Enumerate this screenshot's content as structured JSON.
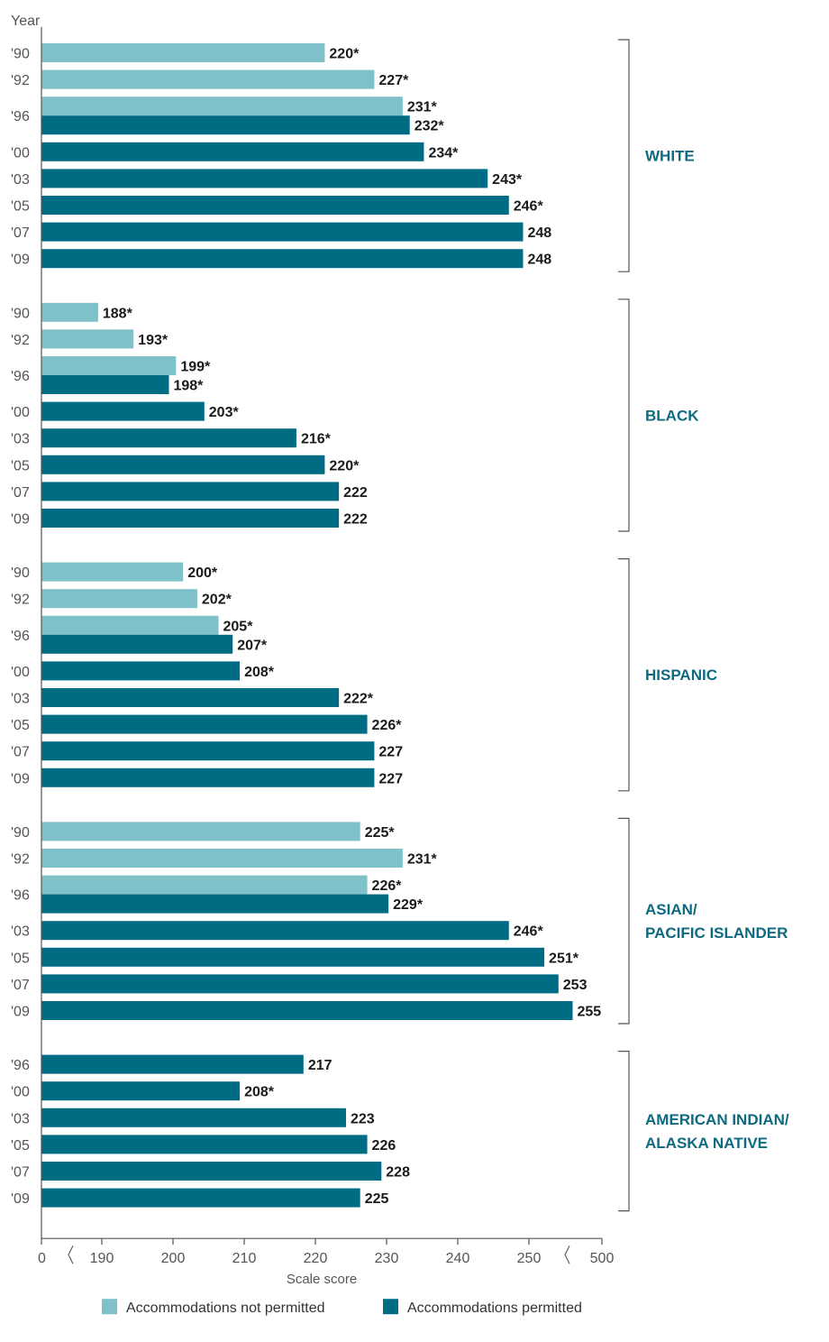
{
  "chart_data": {
    "type": "bar",
    "orientation": "horizontal",
    "y_axis_label": "Year",
    "x_axis_label": "Scale score",
    "x_ticks": [
      "0",
      "190",
      "200",
      "210",
      "220",
      "230",
      "240",
      "250",
      "500"
    ],
    "axis_breaks": true,
    "colors": {
      "not_permitted": "#7fc1c8",
      "permitted": "#006c84",
      "group_label": "#0e6a80"
    },
    "legend": {
      "placement": "bottom",
      "not_permitted": "Accommodations not permitted",
      "permitted": "Accommodations permitted"
    },
    "groups": [
      {
        "name_lines": [
          "WHITE"
        ],
        "rows": [
          {
            "year": "'90",
            "bars": [
              {
                "series": "not_permitted",
                "value": 220,
                "label": "220*"
              }
            ]
          },
          {
            "year": "'92",
            "bars": [
              {
                "series": "not_permitted",
                "value": 227,
                "label": "227*"
              }
            ]
          },
          {
            "year": "'96",
            "bars": [
              {
                "series": "not_permitted",
                "value": 231,
                "label": "231*"
              },
              {
                "series": "permitted",
                "value": 232,
                "label": "232*"
              }
            ]
          },
          {
            "year": "'00",
            "bars": [
              {
                "series": "permitted",
                "value": 234,
                "label": "234*"
              }
            ]
          },
          {
            "year": "'03",
            "bars": [
              {
                "series": "permitted",
                "value": 243,
                "label": "243*"
              }
            ]
          },
          {
            "year": "'05",
            "bars": [
              {
                "series": "permitted",
                "value": 246,
                "label": "246*"
              }
            ]
          },
          {
            "year": "'07",
            "bars": [
              {
                "series": "permitted",
                "value": 248,
                "label": "248"
              }
            ]
          },
          {
            "year": "'09",
            "bars": [
              {
                "series": "permitted",
                "value": 248,
                "label": "248"
              }
            ]
          }
        ]
      },
      {
        "name_lines": [
          "BLACK"
        ],
        "rows": [
          {
            "year": "'90",
            "bars": [
              {
                "series": "not_permitted",
                "value": 188,
                "label": "188*"
              }
            ]
          },
          {
            "year": "'92",
            "bars": [
              {
                "series": "not_permitted",
                "value": 193,
                "label": "193*"
              }
            ]
          },
          {
            "year": "'96",
            "bars": [
              {
                "series": "not_permitted",
                "value": 199,
                "label": "199*"
              },
              {
                "series": "permitted",
                "value": 198,
                "label": "198*"
              }
            ]
          },
          {
            "year": "'00",
            "bars": [
              {
                "series": "permitted",
                "value": 203,
                "label": "203*"
              }
            ]
          },
          {
            "year": "'03",
            "bars": [
              {
                "series": "permitted",
                "value": 216,
                "label": "216*"
              }
            ]
          },
          {
            "year": "'05",
            "bars": [
              {
                "series": "permitted",
                "value": 220,
                "label": "220*"
              }
            ]
          },
          {
            "year": "'07",
            "bars": [
              {
                "series": "permitted",
                "value": 222,
                "label": "222"
              }
            ]
          },
          {
            "year": "'09",
            "bars": [
              {
                "series": "permitted",
                "value": 222,
                "label": "222"
              }
            ]
          }
        ]
      },
      {
        "name_lines": [
          "HISPANIC"
        ],
        "rows": [
          {
            "year": "'90",
            "bars": [
              {
                "series": "not_permitted",
                "value": 200,
                "label": "200*"
              }
            ]
          },
          {
            "year": "'92",
            "bars": [
              {
                "series": "not_permitted",
                "value": 202,
                "label": "202*"
              }
            ]
          },
          {
            "year": "'96",
            "bars": [
              {
                "series": "not_permitted",
                "value": 205,
                "label": "205*"
              },
              {
                "series": "permitted",
                "value": 207,
                "label": "207*"
              }
            ]
          },
          {
            "year": "'00",
            "bars": [
              {
                "series": "permitted",
                "value": 208,
                "label": "208*"
              }
            ]
          },
          {
            "year": "'03",
            "bars": [
              {
                "series": "permitted",
                "value": 222,
                "label": "222*"
              }
            ]
          },
          {
            "year": "'05",
            "bars": [
              {
                "series": "permitted",
                "value": 226,
                "label": "226*"
              }
            ]
          },
          {
            "year": "'07",
            "bars": [
              {
                "series": "permitted",
                "value": 227,
                "label": "227"
              }
            ]
          },
          {
            "year": "'09",
            "bars": [
              {
                "series": "permitted",
                "value": 227,
                "label": "227"
              }
            ]
          }
        ]
      },
      {
        "name_lines": [
          "ASIAN/",
          "PACIFIC ISLANDER"
        ],
        "rows": [
          {
            "year": "'90",
            "bars": [
              {
                "series": "not_permitted",
                "value": 225,
                "label": "225*"
              }
            ]
          },
          {
            "year": "'92",
            "bars": [
              {
                "series": "not_permitted",
                "value": 231,
                "label": "231*"
              }
            ]
          },
          {
            "year": "'96",
            "bars": [
              {
                "series": "not_permitted",
                "value": 226,
                "label": "226*"
              },
              {
                "series": "permitted",
                "value": 229,
                "label": "229*"
              }
            ]
          },
          {
            "year": "'03",
            "bars": [
              {
                "series": "permitted",
                "value": 246,
                "label": "246*"
              }
            ]
          },
          {
            "year": "'05",
            "bars": [
              {
                "series": "permitted",
                "value": 251,
                "label": "251*"
              }
            ]
          },
          {
            "year": "'07",
            "bars": [
              {
                "series": "permitted",
                "value": 253,
                "label": "253"
              }
            ]
          },
          {
            "year": "'09",
            "bars": [
              {
                "series": "permitted",
                "value": 255,
                "label": "255"
              }
            ]
          }
        ]
      },
      {
        "name_lines": [
          "AMERICAN INDIAN/",
          "ALASKA NATIVE"
        ],
        "rows": [
          {
            "year": "'96",
            "bars": [
              {
                "series": "permitted",
                "value": 217,
                "label": "217"
              }
            ]
          },
          {
            "year": "'00",
            "bars": [
              {
                "series": "permitted",
                "value": 208,
                "label": "208*"
              }
            ]
          },
          {
            "year": "'03",
            "bars": [
              {
                "series": "permitted",
                "value": 223,
                "label": "223"
              }
            ]
          },
          {
            "year": "'05",
            "bars": [
              {
                "series": "permitted",
                "value": 226,
                "label": "226"
              }
            ]
          },
          {
            "year": "'07",
            "bars": [
              {
                "series": "permitted",
                "value": 228,
                "label": "228"
              }
            ]
          },
          {
            "year": "'09",
            "bars": [
              {
                "series": "permitted",
                "value": 225,
                "label": "225"
              }
            ]
          }
        ]
      }
    ]
  }
}
